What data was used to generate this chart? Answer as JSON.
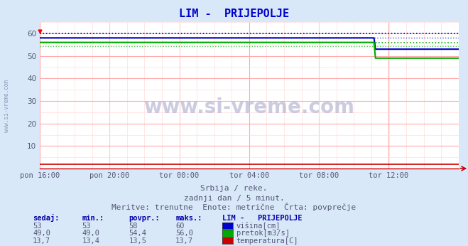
{
  "title": "LIM -  PRIJEPOLJE",
  "title_color": "#0000cc",
  "bg_color": "#d8e8f8",
  "plot_bg_color": "#ffffff",
  "grid_color_major": "#ffaaaa",
  "grid_color_minor": "#ffdddd",
  "ylim": [
    0,
    65
  ],
  "yticks": [
    10,
    20,
    30,
    40,
    50,
    60
  ],
  "x_labels": [
    "pon 16:00",
    "pon 20:00",
    "tor 00:00",
    "tor 04:00",
    "tor 08:00",
    "tor 12:00"
  ],
  "x_ticks_norm": [
    0.0,
    0.1667,
    0.3333,
    0.5,
    0.6667,
    0.8333
  ],
  "n_points": 288,
  "change_point": 230,
  "visina_before": 58,
  "visina_after": 53,
  "visina_max": 60,
  "visina_avg": 58,
  "pretok_before": 56.0,
  "pretok_after": 49.0,
  "pretok_max": 56.0,
  "pretok_avg": 54.4,
  "temp_value": 2.0,
  "color_visina": "#0000cc",
  "color_pretok": "#00aa00",
  "color_temp": "#cc0000",
  "subtitle1": "Srbija / reke.",
  "subtitle2": "zadnji dan / 5 minut.",
  "subtitle3": "Meritve: trenutne  Enote: metrične  Črta: povprečje",
  "legend_title": "LIM -   PRIJEPOLJE",
  "legend_rows": [
    {
      "sedaj": "53",
      "min": "53",
      "povpr": "58",
      "maks": "60",
      "color": "#0000cc",
      "label": "višina[cm]"
    },
    {
      "sedaj": "49,0",
      "min": "49,0",
      "povpr": "54,4",
      "maks": "56,0",
      "color": "#00aa00",
      "label": "pretok[m3/s]"
    },
    {
      "sedaj": "13,7",
      "min": "13,4",
      "povpr": "13,5",
      "maks": "13,7",
      "color": "#cc0000",
      "label": "temperatura[C]"
    }
  ],
  "watermark": "www.si-vreme.com",
  "watermark_color": "#aaaacc",
  "left_label": "www.si-vreme.com",
  "left_label_color": "#8899bb"
}
